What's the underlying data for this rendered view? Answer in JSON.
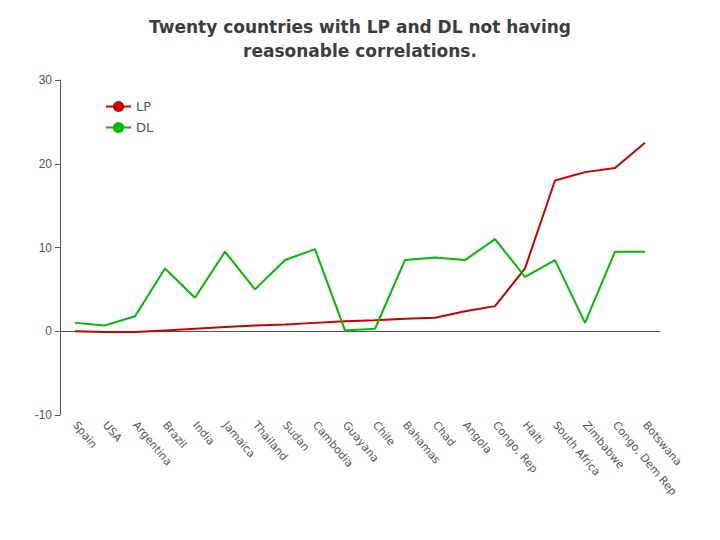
{
  "chart_data": {
    "type": "line",
    "title": "Twenty countries with LP and DL not having\nreasonable correlations.",
    "categories": [
      "Spain",
      "USA",
      "Argentina",
      "Brazil",
      "India",
      "Jamaica",
      "Thailand",
      "Sudan",
      "Cambodia",
      "Guayana",
      "Chile",
      "Bahamas",
      "Chad",
      "Angola",
      "Congo, Rep",
      "Haiti",
      "South Africa",
      "Zimbabwe",
      "Congo, Dem Rep",
      "Botswana"
    ],
    "series": [
      {
        "name": "LP",
        "color": "#cc0000",
        "values": [
          0.0,
          -0.1,
          -0.1,
          0.1,
          0.3,
          0.5,
          0.7,
          0.8,
          1.0,
          1.2,
          1.3,
          1.5,
          1.6,
          2.4,
          3.0,
          7.5,
          18.0,
          19.0,
          19.5,
          22.5
        ]
      },
      {
        "name": "DL",
        "color": "#00bb00",
        "values": [
          1.0,
          0.7,
          1.8,
          7.5,
          4.0,
          9.5,
          5.0,
          8.5,
          9.8,
          0.1,
          0.3,
          8.5,
          8.8,
          8.5,
          11.0,
          6.5,
          8.5,
          1.0,
          9.5,
          9.5
        ]
      }
    ],
    "ylim": [
      -10,
      30
    ],
    "yticks": [
      -10,
      0,
      10,
      20,
      30
    ],
    "grid": false,
    "legend": "upper left"
  }
}
